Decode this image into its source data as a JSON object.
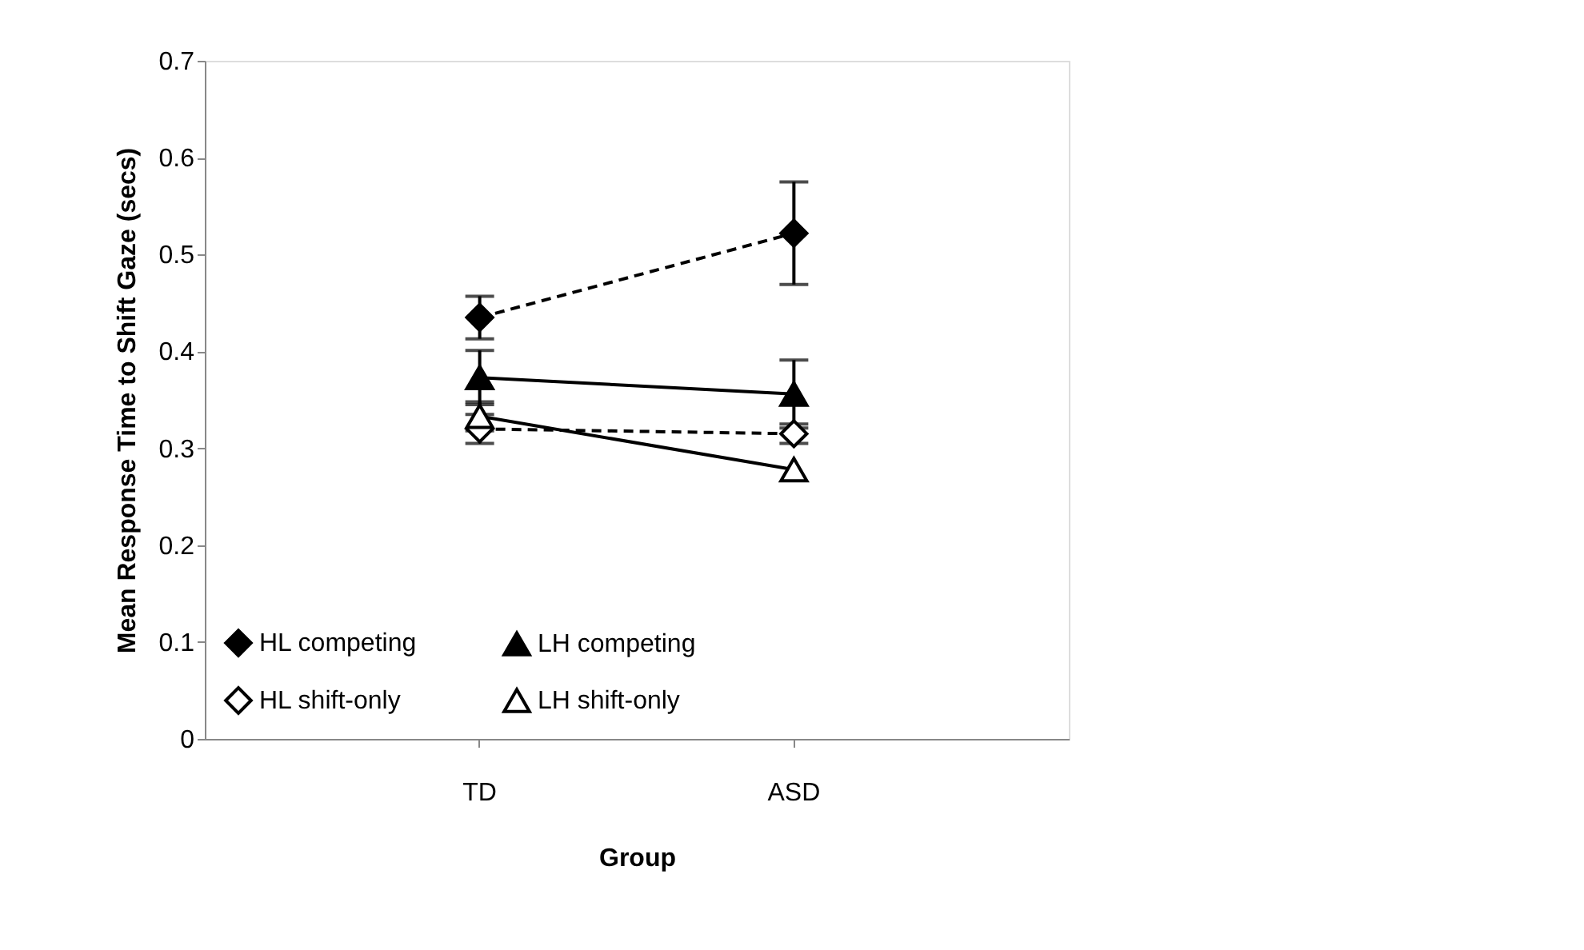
{
  "chart_data": {
    "type": "line",
    "xlabel": "Group",
    "ylabel": "Mean Response Time to Shift Gaze (secs)",
    "categories": [
      "TD",
      "ASD"
    ],
    "ylim": [
      0,
      0.7
    ],
    "yticks": [
      0,
      0.1,
      0.2,
      0.3,
      0.4,
      0.5,
      0.6,
      0.7
    ],
    "grid": false,
    "legend": "bottom",
    "series": [
      {
        "name": "HL competing",
        "color": "#000000",
        "marker": "diamond",
        "line_style": "dashed",
        "values": [
          0.435,
          0.522
        ],
        "errors": [
          0.022,
          0.053
        ]
      },
      {
        "name": "HL shift-only",
        "color": "#000000",
        "marker": "diamond",
        "line_style": "dashed",
        "values": [
          0.32,
          0.315
        ],
        "errors": [
          0.015,
          0.01
        ]
      },
      {
        "name": "LH competing",
        "color": "#000000",
        "marker": "triangle",
        "line_style": "solid",
        "values": [
          0.373,
          0.356
        ],
        "errors": [
          0.028,
          0.035
        ]
      },
      {
        "name": "LH shift-only",
        "color": "#000000",
        "marker": "triangle",
        "line_style": "solid",
        "values": [
          0.333,
          0.278
        ],
        "errors": [
          0.015,
          null
        ]
      }
    ]
  }
}
